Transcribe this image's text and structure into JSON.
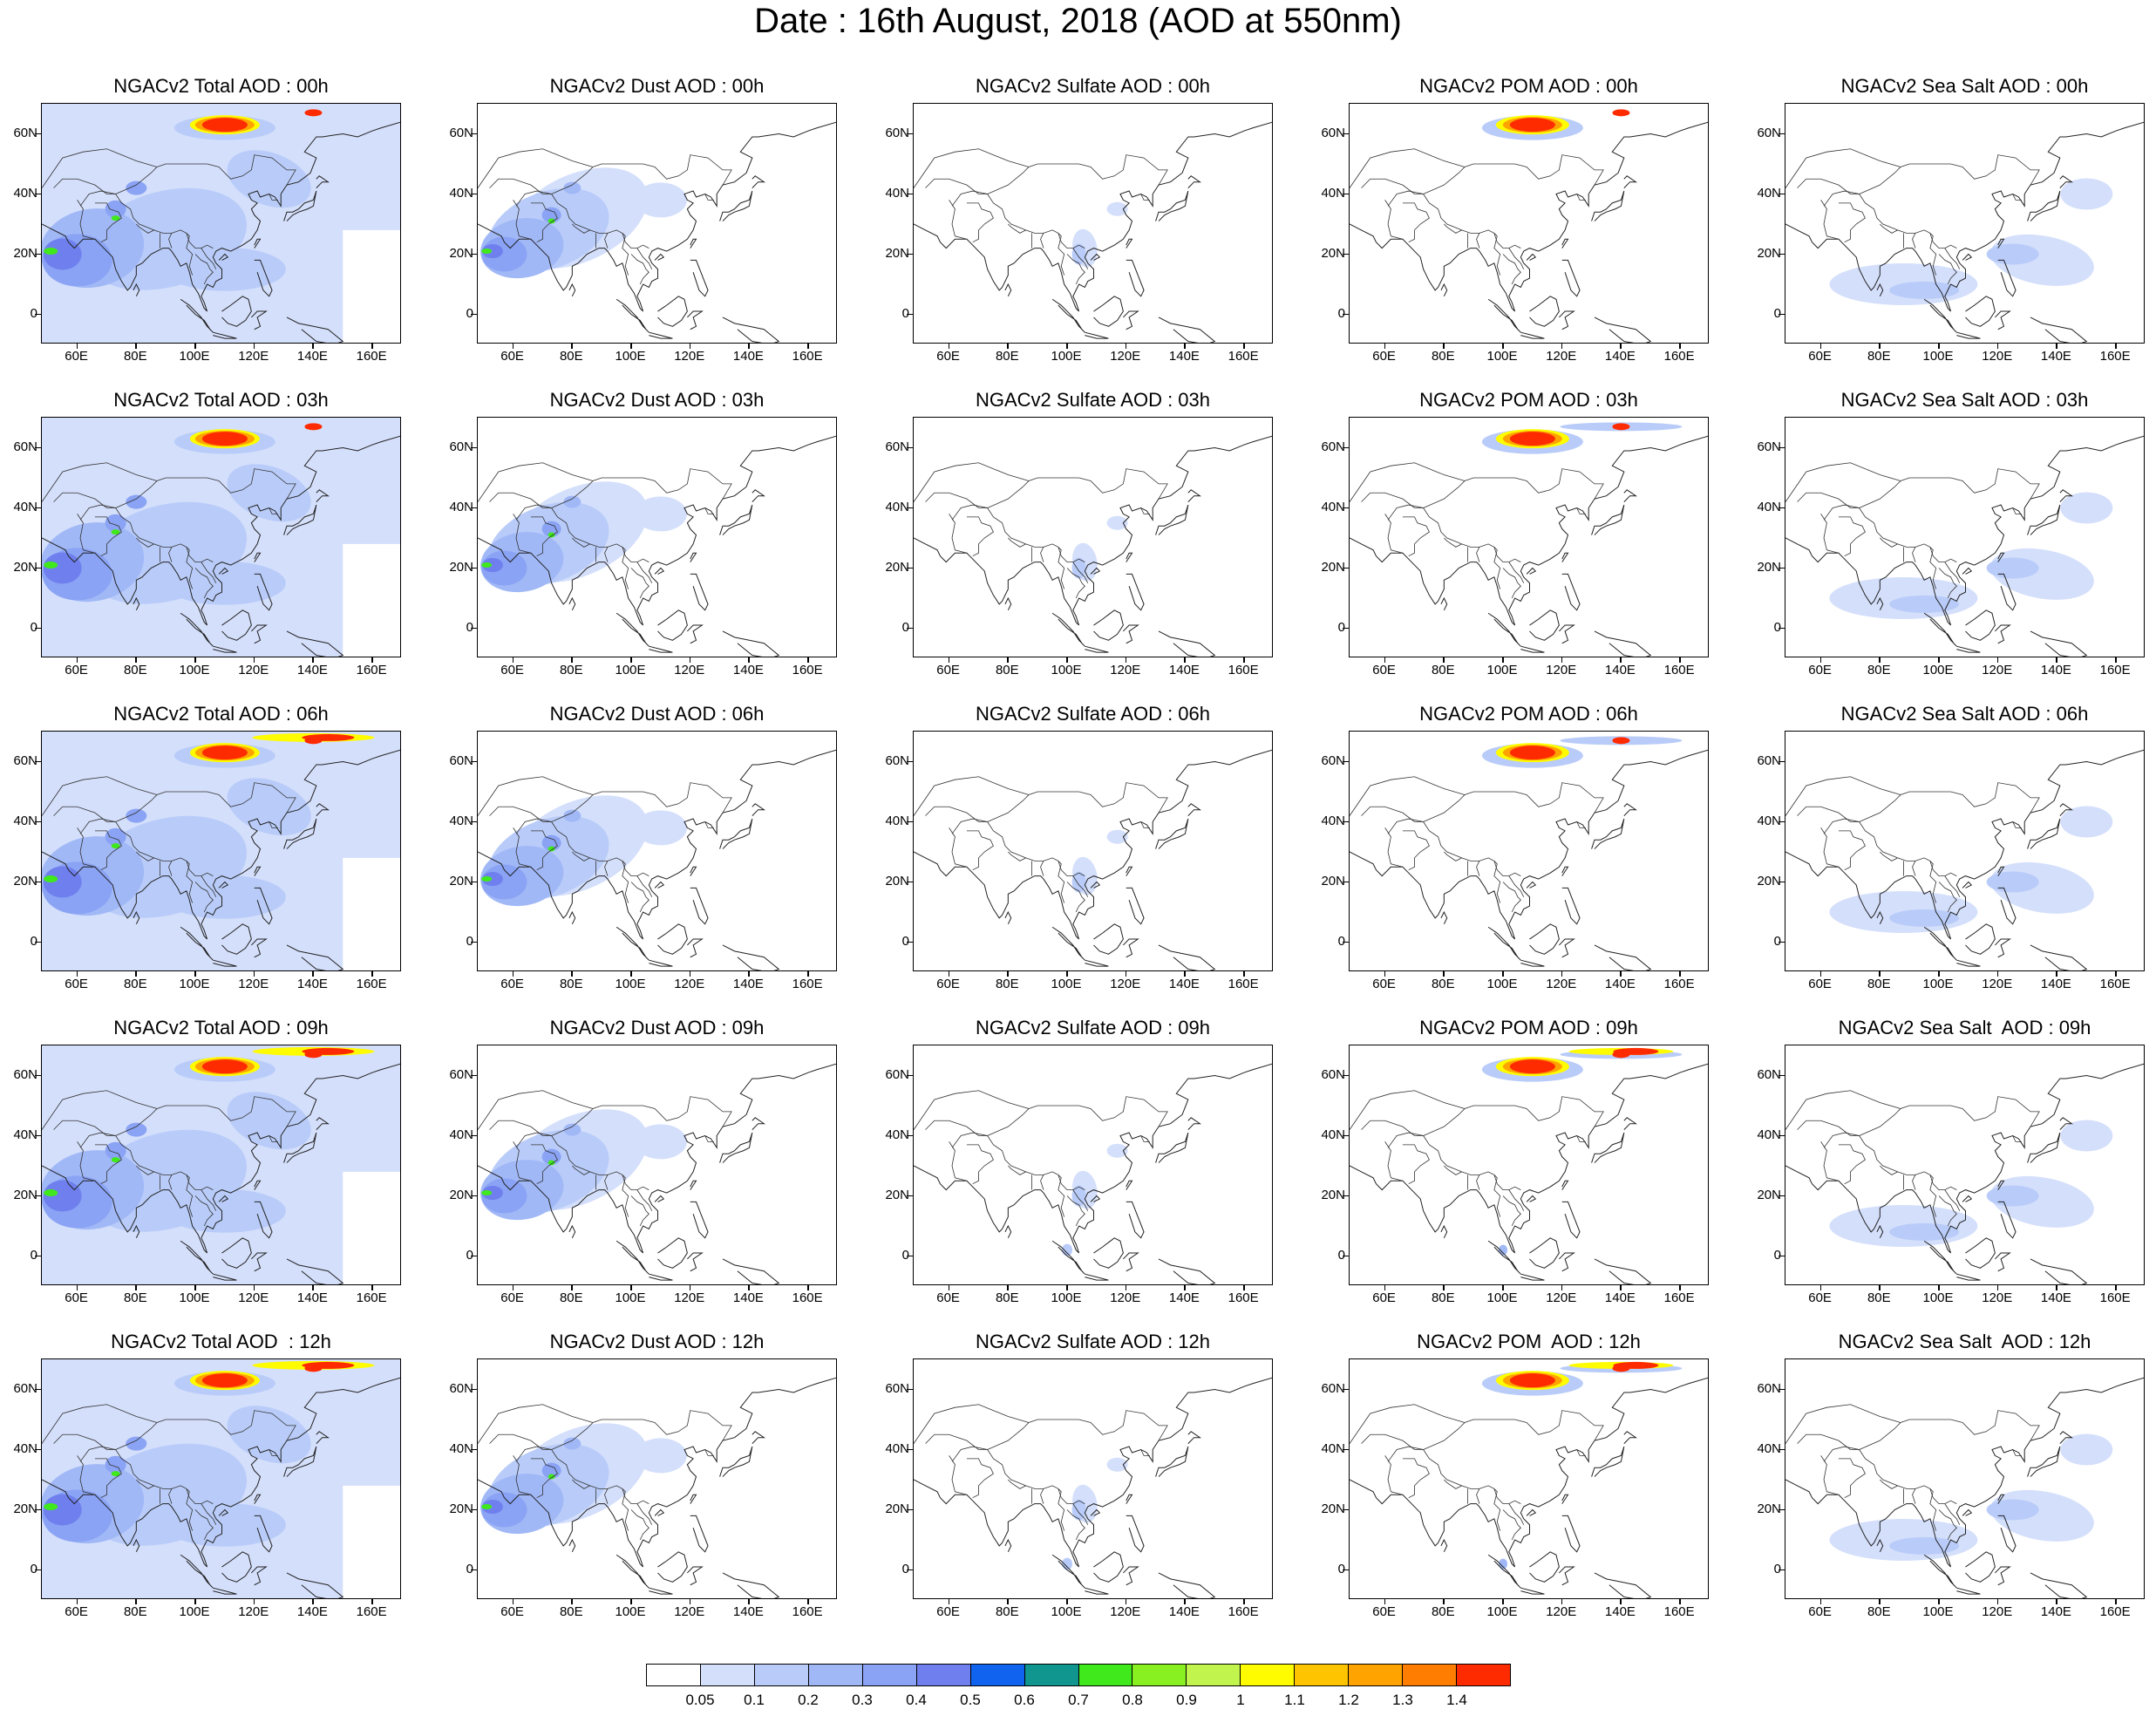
{
  "title": "Date : 16th August, 2018 (AOD at 550nm)",
  "columns": [
    "total",
    "dust",
    "sulfate",
    "pom",
    "seasalt"
  ],
  "panels": [
    [
      "NGACv2 Total AOD : 00h",
      "NGACv2 Dust AOD : 00h",
      "NGACv2 Sulfate AOD : 00h",
      "NGACv2 POM AOD : 00h",
      "NGACv2 Sea Salt AOD : 00h"
    ],
    [
      "NGACv2 Total AOD : 03h",
      "NGACv2 Dust AOD : 03h",
      "NGACv2 Sulfate AOD : 03h",
      "NGACv2 POM AOD : 03h",
      "NGACv2 Sea Salt AOD : 03h"
    ],
    [
      "NGACv2 Total AOD : 06h",
      "NGACv2 Dust AOD : 06h",
      "NGACv2 Sulfate AOD : 06h",
      "NGACv2 POM AOD : 06h",
      "NGACv2 Sea Salt AOD : 06h"
    ],
    [
      "NGACv2 Total AOD : 09h",
      "NGACv2 Dust AOD : 09h",
      "NGACv2 Sulfate AOD : 09h",
      "NGACv2 POM AOD : 09h",
      "NGACv2 Sea Salt  AOD : 09h"
    ],
    [
      "NGACv2 Total AOD  : 12h",
      "NGACv2 Dust AOD : 12h",
      "NGACv2 Sulfate AOD : 12h",
      "NGACv2 POM  AOD : 12h",
      "NGACv2 Sea Salt  AOD : 12h"
    ]
  ],
  "lat_ticks": [
    "60N",
    "40N",
    "20N",
    "0"
  ],
  "lon_ticks": [
    "60E",
    "80E",
    "100E",
    "120E",
    "140E",
    "160E"
  ],
  "colorbar": {
    "colors": [
      "#ffffff",
      "#d4dffb",
      "#b9ccf9",
      "#a1b8f7",
      "#8aa3f4",
      "#6f80ee",
      "#1063ee",
      "#10958f",
      "#3fe91c",
      "#88f020",
      "#c1f54d",
      "#fffc00",
      "#ffc400",
      "#ffa300",
      "#ff7d00",
      "#ff2b00"
    ],
    "labels": [
      "0.05",
      "0.1",
      "0.2",
      "0.3",
      "0.4",
      "0.5",
      "0.6",
      "0.7",
      "0.8",
      "0.9",
      "1",
      "1.1",
      "1.2",
      "1.3",
      "1.4"
    ]
  }
}
